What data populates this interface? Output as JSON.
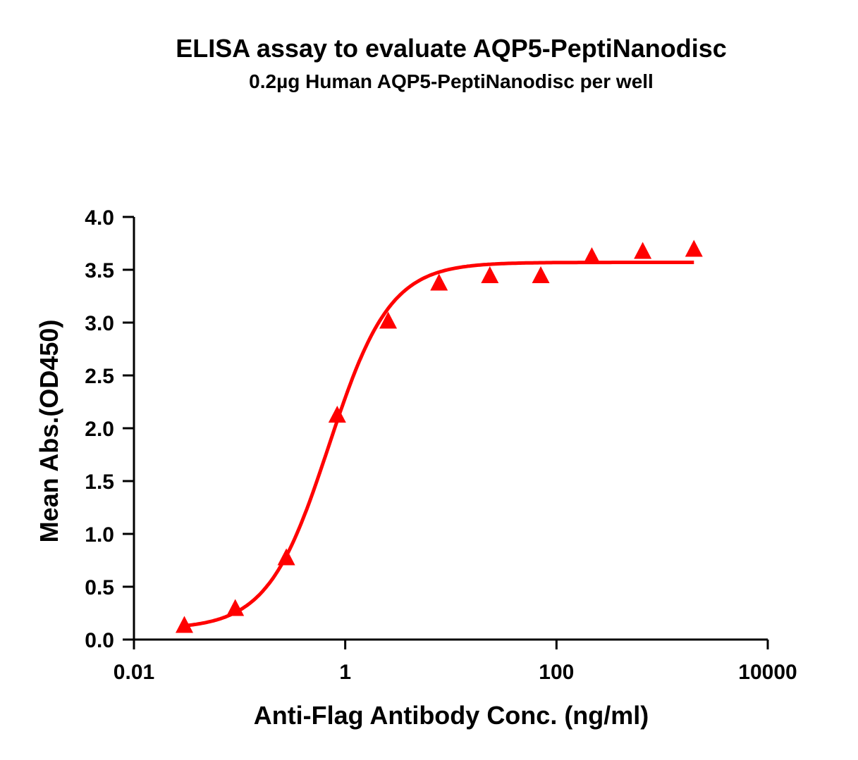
{
  "chart_data": {
    "type": "scatter",
    "title": "ELISA assay to evaluate AQP5-PeptiNanodisc",
    "subtitle": "0.2µg Human AQP5-PeptiNanodisc per well",
    "xlabel": "Anti-Flag Antibody Conc. (ng/ml)",
    "ylabel": "Mean Abs.(OD450)",
    "xscale": "log",
    "xlim": [
      0.01,
      10000
    ],
    "ylim": [
      0,
      4.0
    ],
    "xticks": [
      0.01,
      1,
      100,
      10000
    ],
    "xtick_labels": [
      "0.01",
      "1",
      "100",
      "10000"
    ],
    "yticks": [
      0,
      0.5,
      1,
      1.5,
      2,
      2.5,
      3,
      3.5,
      4
    ],
    "ytick_labels": [
      "0.0",
      "0.5",
      "1.0",
      "1.5",
      "2.0",
      "2.5",
      "3.0",
      "3.5",
      "4.0"
    ],
    "grid": false,
    "color": "#ff0000",
    "marker": "triangle",
    "series": [
      {
        "x": [
          0.03,
          0.091,
          0.277,
          0.84,
          2.55,
          7.73,
          23.4,
          71,
          216,
          655,
          2000
        ],
        "y": [
          0.13,
          0.29,
          0.77,
          2.12,
          3.01,
          3.37,
          3.44,
          3.44,
          3.62,
          3.67,
          3.69
        ],
        "fit": {
          "model": "4PL",
          "bottom": 0.1,
          "top": 3.57,
          "ec50": 0.7,
          "hill": 1.5,
          "x_range": [
            0.03,
            2000
          ]
        }
      }
    ]
  }
}
